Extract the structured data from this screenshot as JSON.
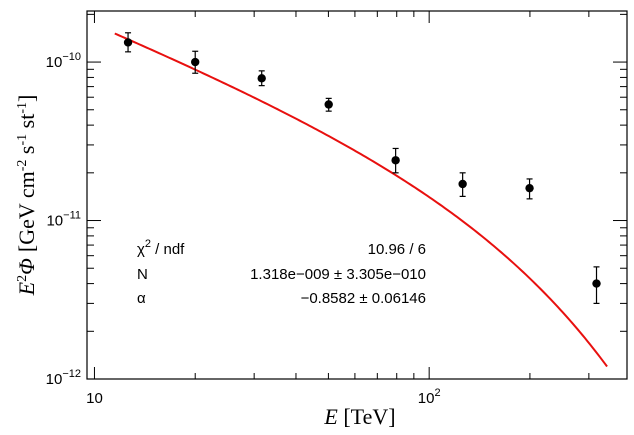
{
  "chart_data": {
    "type": "scatter",
    "xlabel_var": "E",
    "xlabel_unit": " [TeV]",
    "ylabel_var": "E",
    "ylabel_sup": "2",
    "ylabel_sym": "Φ",
    "ylabel_unit": "[GeV cm",
    "ylabel_sup2": "-2",
    "ylabel_s": " s",
    "ylabel_sup3": "-1",
    "ylabel_st": " st",
    "ylabel_sup4": "-1",
    "ylabel_end": "]",
    "xscale": "log",
    "yscale": "log",
    "xlim": [
      9.5,
      390
    ],
    "ylim": [
      1e-12,
      2.1e-10
    ],
    "x_ticks": [
      {
        "value": 10,
        "base": "10",
        "exp": ""
      },
      {
        "value": 100,
        "base": "10",
        "exp": "2"
      }
    ],
    "y_ticks": [
      {
        "value": 1e-12,
        "base": "10",
        "exp": "−12"
      },
      {
        "value": 1e-11,
        "base": "10",
        "exp": "−11"
      },
      {
        "value": 1e-10,
        "base": "10",
        "exp": "−10"
      }
    ],
    "points": [
      {
        "x": 12.6,
        "y": 1.33e-10,
        "err_lo": 1.7e-11,
        "err_hi": 2e-11
      },
      {
        "x": 20.0,
        "y": 1e-10,
        "err_lo": 1.5e-11,
        "err_hi": 1.7e-11
      },
      {
        "x": 31.6,
        "y": 7.9e-11,
        "err_lo": 8e-12,
        "err_hi": 9e-12
      },
      {
        "x": 50.1,
        "y": 5.4e-11,
        "err_lo": 5e-12,
        "err_hi": 5e-12
      },
      {
        "x": 79.4,
        "y": 2.4e-11,
        "err_lo": 4e-12,
        "err_hi": 4.5e-12
      },
      {
        "x": 125.9,
        "y": 1.7e-11,
        "err_lo": 2.8e-12,
        "err_hi": 3e-12
      },
      {
        "x": 199.5,
        "y": 1.6e-11,
        "err_lo": 2.3e-12,
        "err_hi": 2.3e-12
      },
      {
        "x": 316.2,
        "y": 4e-12,
        "err_lo": 1e-12,
        "err_hi": 1.1e-12
      }
    ],
    "fit": {
      "N": 1.318e-09,
      "alpha": -0.8582,
      "x_range": [
        11.5,
        340
      ],
      "color": "#e8100f"
    },
    "stats_box": {
      "row1_label": "χ",
      "row1_label_sup": "2",
      "row1_label_rest": " / ndf",
      "row1_value": "10.96 / 6",
      "row2_label": "N",
      "row2_value": "1.318e−009 ± 3.305e−010",
      "row3_label": "α",
      "row3_value": "−0.8582 ± 0.06146"
    }
  }
}
